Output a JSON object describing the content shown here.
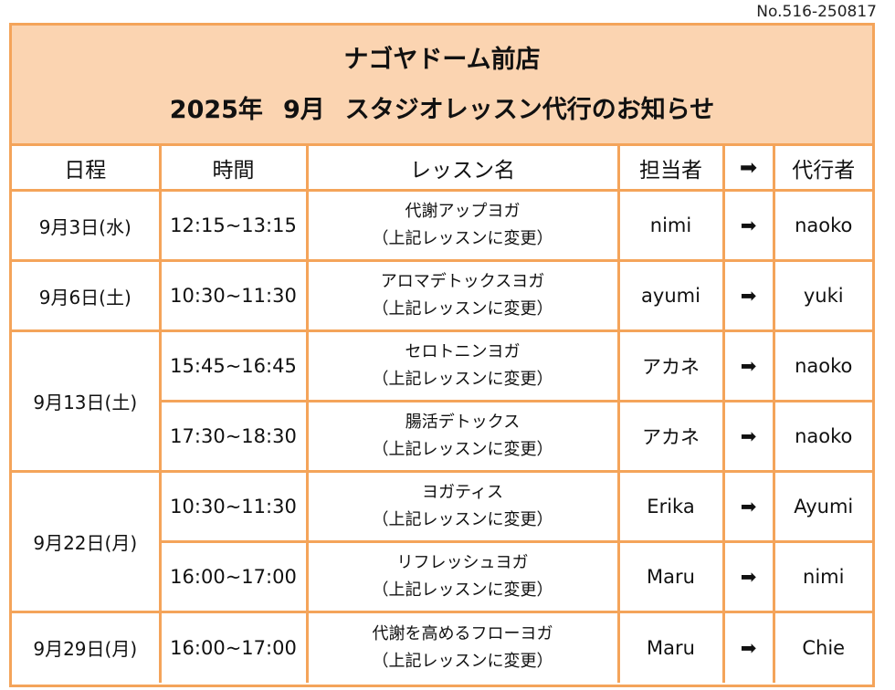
{
  "doc_number": "No.516-250817",
  "header": {
    "store": "ナゴヤドーム前店",
    "year": "2025年",
    "month": "9月",
    "subject": "スタジオレッスン代行のお知らせ"
  },
  "columns": {
    "date": "日程",
    "time": "時間",
    "lesson": "レッスン名",
    "instructor": "担当者",
    "arrow": "➡",
    "substitute": "代行者"
  },
  "note": "（上記レッスンに変更）",
  "arrow": "➡",
  "rows": [
    {
      "date": "9月3日(水)",
      "time": "12:15~13:15",
      "lesson": "代謝アップヨガ",
      "instructor": "nimi",
      "substitute": "naoko"
    },
    {
      "date": "9月6日(土)",
      "time": "10:30~11:30",
      "lesson": "アロマデトックスヨガ",
      "instructor": "ayumi",
      "substitute": "yuki"
    },
    {
      "date": "9月13日(土)",
      "time": "15:45~16:45",
      "lesson": "セロトニンヨガ",
      "instructor": "アカネ",
      "substitute": "naoko"
    },
    {
      "time": "17:30~18:30",
      "lesson": "腸活デトックス",
      "instructor": "アカネ",
      "substitute": "naoko"
    },
    {
      "date": "9月22日(月)",
      "time": "10:30~11:30",
      "lesson": "ヨガティス",
      "instructor": "Erika",
      "substitute": "Ayumi"
    },
    {
      "time": "16:00~17:00",
      "lesson": "リフレッシュヨガ",
      "instructor": "Maru",
      "substitute": "nimi"
    },
    {
      "date": "9月29日(月)",
      "time": "16:00~17:00",
      "lesson": "代謝を高めるフローヨガ",
      "instructor": "Maru",
      "substitute": "Chie"
    }
  ]
}
